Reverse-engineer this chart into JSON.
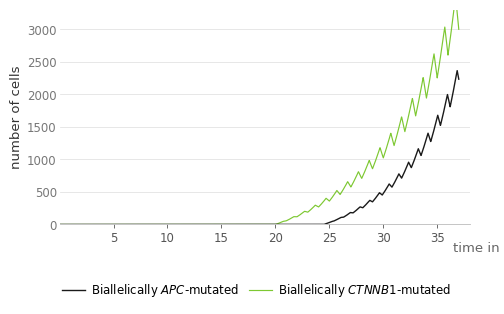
{
  "xlabel": "time in days",
  "ylabel": "number of cells",
  "xlim": [
    0,
    38
  ],
  "ylim": [
    0,
    3300
  ],
  "xticks": [
    5,
    10,
    15,
    20,
    25,
    30,
    35
  ],
  "yticks": [
    0,
    500,
    1000,
    1500,
    2000,
    2500,
    3000
  ],
  "background_color": "#ffffff",
  "line_color_black": "#1a1a1a",
  "line_color_green": "#7dc832",
  "axis_color": "#bbbbbb",
  "tick_label_fontsize": 8.5,
  "axis_label_fontsize": 9.5,
  "ylabel_fontsize": 9.5,
  "legend_label_black": "Biallelically $\\mathit{APC}$-mutated",
  "legend_label_green": "Biallelically $\\mathit{CTNNB1}$-mutated"
}
